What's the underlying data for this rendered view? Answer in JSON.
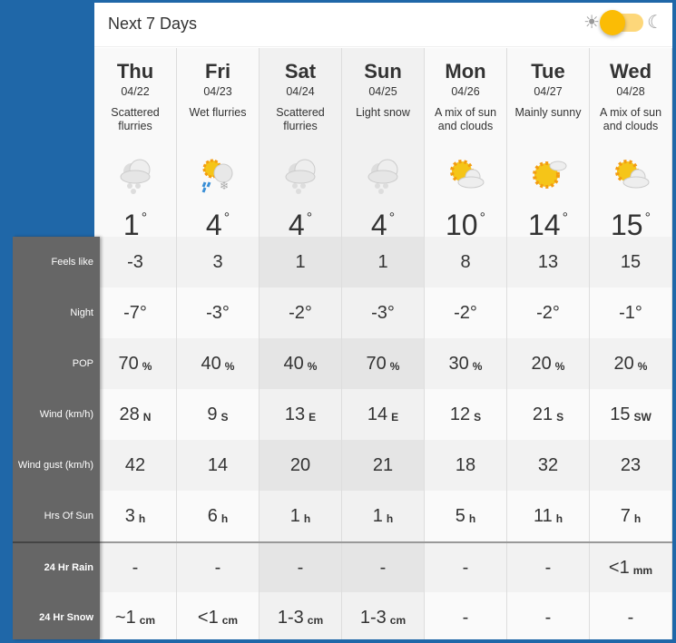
{
  "header": {
    "title": "Next 7 Days",
    "theme_toggle": {
      "state": "light",
      "left_icon": "sun-icon",
      "right_icon": "moon-icon"
    }
  },
  "days": [
    {
      "name": "Thu",
      "date": "04/22",
      "condition": "Scattered flurries",
      "icon": "snow-cloud",
      "temp": "1",
      "weekend": false
    },
    {
      "name": "Fri",
      "date": "04/23",
      "condition": "Wet flurries",
      "icon": "sun-rain-snow",
      "temp": "4",
      "weekend": false
    },
    {
      "name": "Sat",
      "date": "04/24",
      "condition": "Scattered flurries",
      "icon": "snow-cloud",
      "temp": "4",
      "weekend": true
    },
    {
      "name": "Sun",
      "date": "04/25",
      "condition": "Light snow",
      "icon": "snow-cloud",
      "temp": "4",
      "weekend": true
    },
    {
      "name": "Mon",
      "date": "04/26",
      "condition": "A mix of sun and clouds",
      "icon": "sun-cloud",
      "temp": "10",
      "weekend": false
    },
    {
      "name": "Tue",
      "date": "04/27",
      "condition": "Mainly sunny",
      "icon": "mostly-sun",
      "temp": "14",
      "weekend": false
    },
    {
      "name": "Wed",
      "date": "04/28",
      "condition": "A mix of sun and clouds",
      "icon": "sun-cloud",
      "temp": "15",
      "weekend": false
    }
  ],
  "degree": "°",
  "rows": [
    {
      "label": "Feels like",
      "bold": false,
      "values": [
        [
          "-3",
          ""
        ],
        [
          "3",
          ""
        ],
        [
          "1",
          ""
        ],
        [
          "1",
          ""
        ],
        [
          "8",
          ""
        ],
        [
          "13",
          ""
        ],
        [
          "15",
          ""
        ]
      ]
    },
    {
      "label": "Night",
      "bold": false,
      "values": [
        [
          "-7°",
          ""
        ],
        [
          "-3°",
          ""
        ],
        [
          "-2°",
          ""
        ],
        [
          "-3°",
          ""
        ],
        [
          "-2°",
          ""
        ],
        [
          "-2°",
          ""
        ],
        [
          "-1°",
          ""
        ]
      ]
    },
    {
      "label": "POP",
      "bold": false,
      "values": [
        [
          "70",
          "%"
        ],
        [
          "40",
          "%"
        ],
        [
          "40",
          "%"
        ],
        [
          "70",
          "%"
        ],
        [
          "30",
          "%"
        ],
        [
          "20",
          "%"
        ],
        [
          "20",
          "%"
        ]
      ]
    },
    {
      "label": "Wind (km/h)",
      "bold": false,
      "values": [
        [
          "28",
          "N"
        ],
        [
          "9",
          "S"
        ],
        [
          "13",
          "E"
        ],
        [
          "14",
          "E"
        ],
        [
          "12",
          "S"
        ],
        [
          "21",
          "S"
        ],
        [
          "15",
          "SW"
        ]
      ]
    },
    {
      "label": "Wind gust (km/h)",
      "bold": false,
      "values": [
        [
          "42",
          ""
        ],
        [
          "14",
          ""
        ],
        [
          "20",
          ""
        ],
        [
          "21",
          ""
        ],
        [
          "18",
          ""
        ],
        [
          "32",
          ""
        ],
        [
          "23",
          ""
        ]
      ]
    },
    {
      "label": "Hrs Of Sun",
      "bold": false,
      "values": [
        [
          "3",
          "h"
        ],
        [
          "6",
          "h"
        ],
        [
          "1",
          "h"
        ],
        [
          "1",
          "h"
        ],
        [
          "5",
          "h"
        ],
        [
          "11",
          "h"
        ],
        [
          "7",
          "h"
        ]
      ]
    },
    {
      "label": "24 Hr Rain",
      "bold": true,
      "values": [
        [
          "-",
          ""
        ],
        [
          "-",
          ""
        ],
        [
          "-",
          ""
        ],
        [
          "-",
          ""
        ],
        [
          "-",
          ""
        ],
        [
          "-",
          ""
        ],
        [
          "<1",
          "mm"
        ]
      ]
    },
    {
      "label": "24 Hr Snow",
      "bold": true,
      "values": [
        [
          "~1",
          "cm"
        ],
        [
          "<1",
          "cm"
        ],
        [
          "1-3",
          "cm"
        ],
        [
          "1-3",
          "cm"
        ],
        [
          "-",
          ""
        ],
        [
          "-",
          ""
        ],
        [
          "-",
          ""
        ]
      ]
    }
  ],
  "colors": {
    "background": "#1f67a8",
    "label_column": "#666666",
    "toggle": "#fbbc05"
  }
}
